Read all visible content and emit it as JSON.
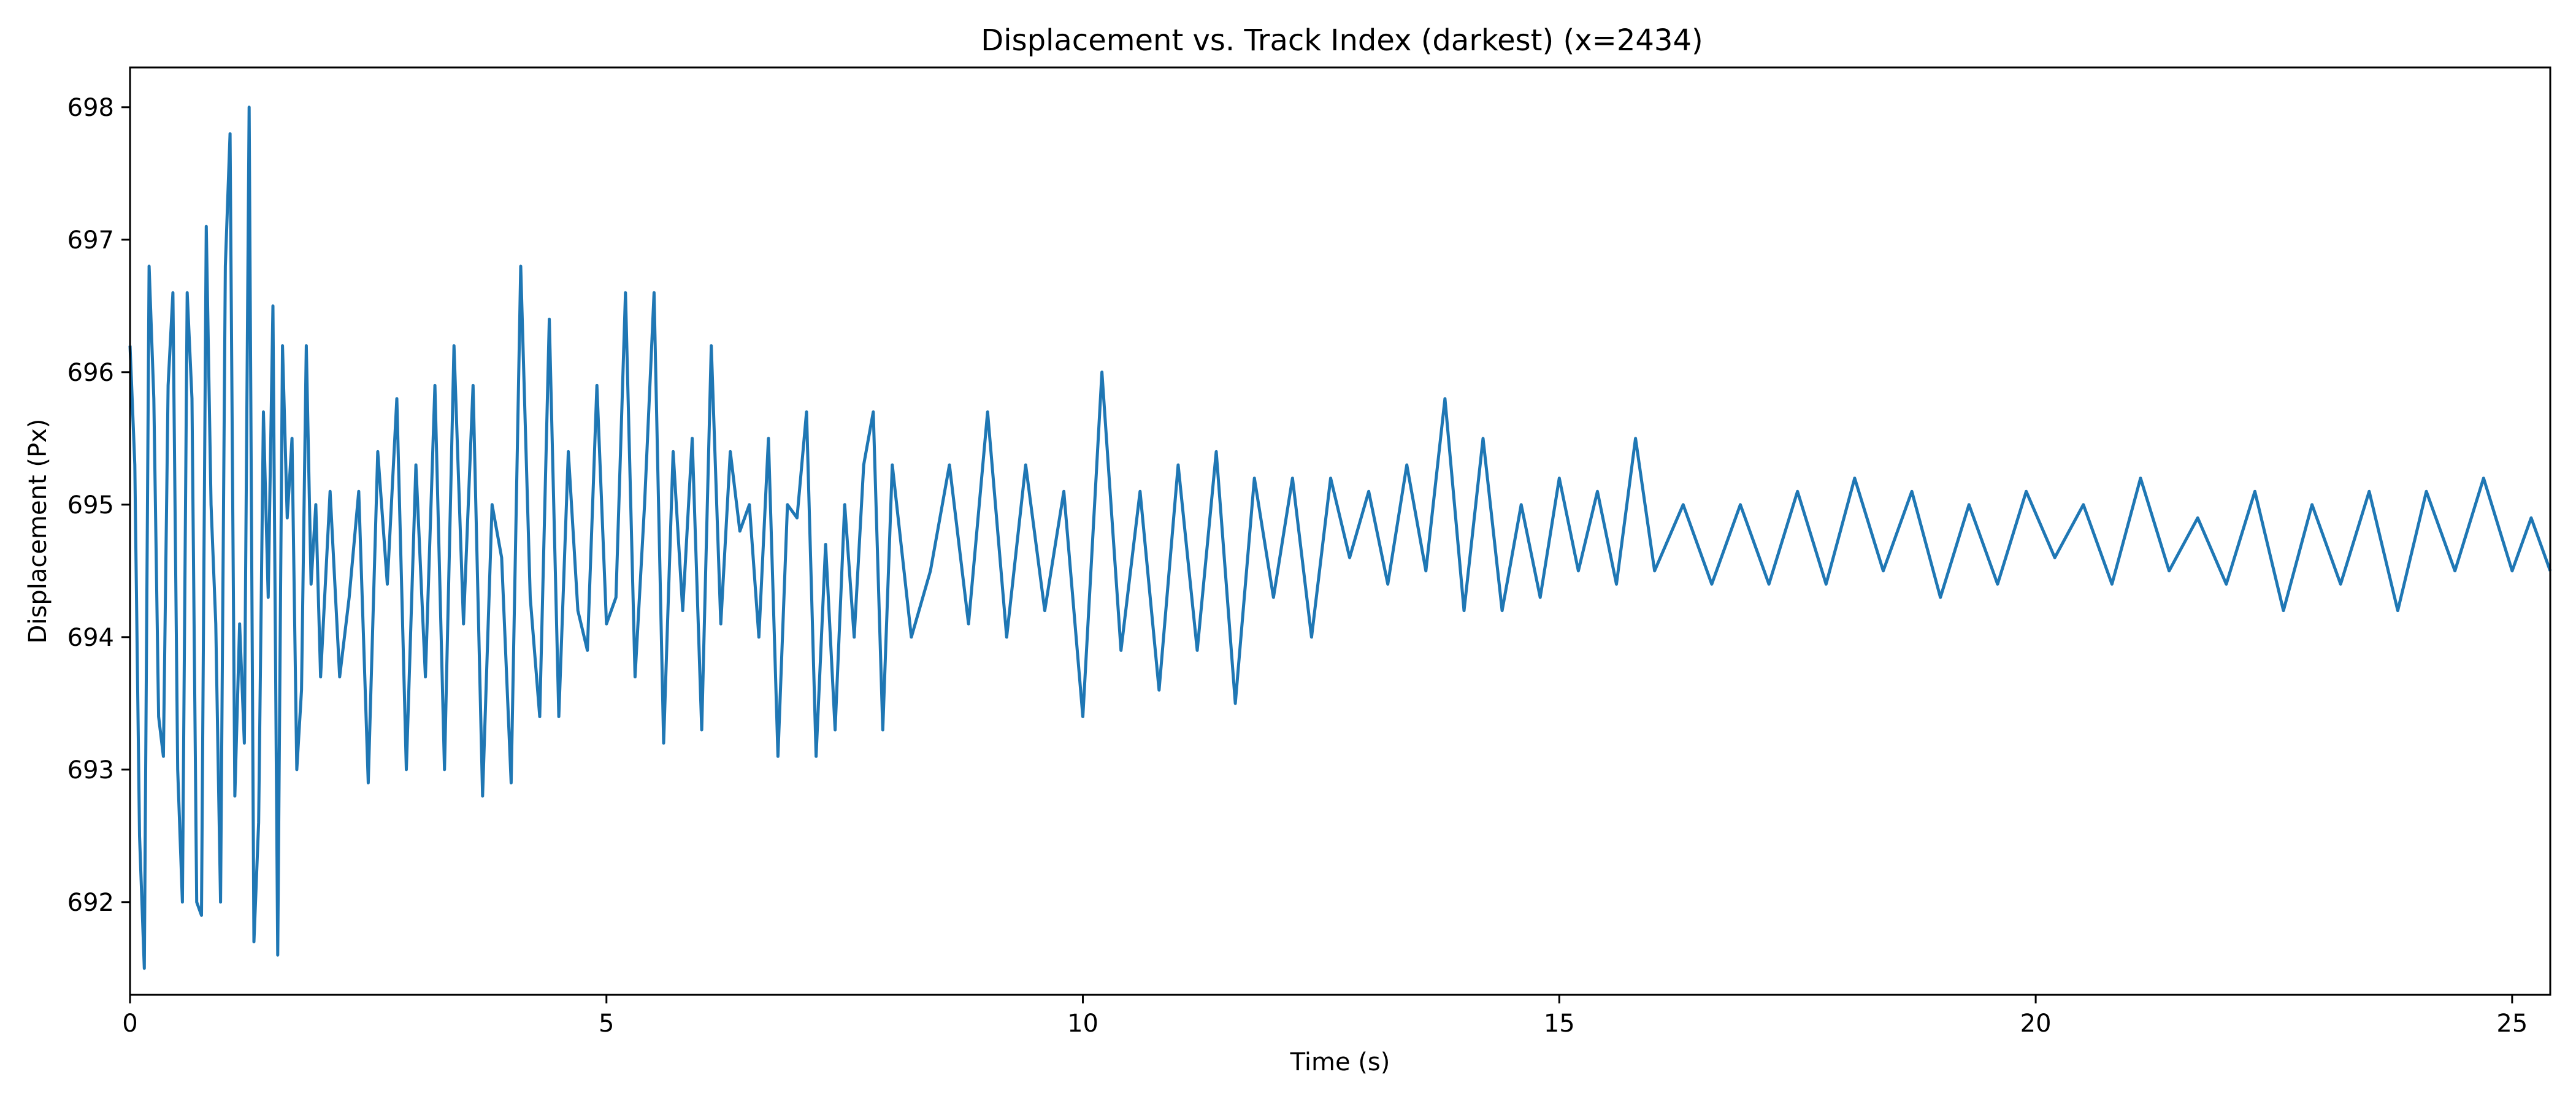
{
  "chart_data": {
    "type": "line",
    "title": "Displacement vs. Track Index (darkest) (x=2434)",
    "xlabel": "Time (s)",
    "ylabel": "Displacement (Px)",
    "xlim": [
      0,
      25.4
    ],
    "ylim": [
      691.3,
      698.3
    ],
    "x_ticks": [
      0,
      5,
      10,
      15,
      20,
      25
    ],
    "y_ticks": [
      692,
      693,
      694,
      695,
      696,
      697,
      698
    ],
    "grid": false,
    "legend": "none",
    "series": [
      {
        "color": "#1f77b4",
        "x": [
          0.0,
          0.05,
          0.1,
          0.15,
          0.2,
          0.25,
          0.3,
          0.35,
          0.4,
          0.45,
          0.5,
          0.55,
          0.6,
          0.65,
          0.7,
          0.75,
          0.8,
          0.85,
          0.9,
          0.95,
          1.0,
          1.05,
          1.1,
          1.15,
          1.2,
          1.25,
          1.3,
          1.35,
          1.4,
          1.45,
          1.5,
          1.55,
          1.6,
          1.65,
          1.7,
          1.75,
          1.8,
          1.85,
          1.9,
          1.95,
          2.0,
          2.1,
          2.2,
          2.3,
          2.4,
          2.5,
          2.6,
          2.7,
          2.8,
          2.9,
          3.0,
          3.1,
          3.2,
          3.3,
          3.4,
          3.5,
          3.6,
          3.7,
          3.8,
          3.9,
          4.0,
          4.1,
          4.2,
          4.3,
          4.4,
          4.5,
          4.6,
          4.7,
          4.8,
          4.9,
          5.0,
          5.1,
          5.2,
          5.3,
          5.4,
          5.5,
          5.6,
          5.7,
          5.8,
          5.9,
          6.0,
          6.1,
          6.2,
          6.3,
          6.4,
          6.5,
          6.6,
          6.7,
          6.8,
          6.9,
          7.0,
          7.1,
          7.2,
          7.3,
          7.4,
          7.5,
          7.6,
          7.7,
          7.8,
          7.9,
          8.0,
          8.2,
          8.4,
          8.6,
          8.8,
          9.0,
          9.2,
          9.4,
          9.6,
          9.8,
          10.0,
          10.2,
          10.4,
          10.6,
          10.8,
          11.0,
          11.2,
          11.4,
          11.6,
          11.8,
          12.0,
          12.2,
          12.4,
          12.6,
          12.8,
          13.0,
          13.2,
          13.4,
          13.6,
          13.8,
          14.0,
          14.2,
          14.4,
          14.6,
          14.8,
          15.0,
          15.2,
          15.4,
          15.6,
          15.8,
          16.0,
          16.3,
          16.6,
          16.9,
          17.2,
          17.5,
          17.8,
          18.1,
          18.4,
          18.7,
          19.0,
          19.3,
          19.6,
          19.9,
          20.2,
          20.5,
          20.8,
          21.1,
          21.4,
          21.7,
          22.0,
          22.3,
          22.6,
          22.9,
          23.2,
          23.5,
          23.8,
          24.1,
          24.4,
          24.7,
          25.0,
          25.2,
          25.4
        ],
        "y": [
          696.2,
          695.3,
          692.5,
          691.5,
          696.8,
          695.8,
          693.4,
          693.1,
          695.9,
          696.6,
          693.0,
          692.0,
          696.6,
          695.8,
          692.0,
          691.9,
          697.1,
          695.0,
          694.1,
          692.0,
          696.8,
          697.8,
          692.8,
          694.1,
          693.2,
          698.0,
          691.7,
          692.6,
          695.7,
          694.3,
          696.5,
          691.6,
          696.2,
          694.9,
          695.5,
          693.0,
          693.6,
          696.2,
          694.4,
          695.0,
          693.7,
          695.1,
          693.7,
          694.3,
          695.1,
          692.9,
          695.4,
          694.4,
          695.8,
          693.0,
          695.3,
          693.7,
          695.9,
          693.0,
          696.2,
          694.1,
          695.9,
          692.8,
          695.0,
          694.6,
          692.9,
          696.8,
          694.3,
          693.4,
          696.4,
          693.4,
          695.4,
          694.2,
          693.9,
          695.9,
          694.1,
          694.3,
          696.6,
          693.7,
          695.0,
          696.6,
          693.2,
          695.4,
          694.2,
          695.5,
          693.3,
          696.2,
          694.1,
          695.4,
          694.8,
          695.0,
          694.0,
          695.5,
          693.1,
          695.0,
          694.9,
          695.7,
          693.1,
          694.7,
          693.3,
          695.0,
          694.0,
          695.3,
          695.7,
          693.3,
          695.3,
          694.0,
          694.5,
          695.3,
          694.1,
          695.7,
          694.0,
          695.3,
          694.2,
          695.1,
          693.4,
          696.0,
          693.9,
          695.1,
          693.6,
          695.3,
          693.9,
          695.4,
          693.5,
          695.2,
          694.3,
          695.2,
          694.0,
          695.2,
          694.6,
          695.1,
          694.4,
          695.3,
          694.5,
          695.8,
          694.2,
          695.5,
          694.2,
          695.0,
          694.3,
          695.2,
          694.5,
          695.1,
          694.4,
          695.5,
          694.5,
          695.0,
          694.4,
          695.0,
          694.4,
          695.1,
          694.4,
          695.2,
          694.5,
          695.1,
          694.3,
          695.0,
          694.4,
          695.1,
          694.6,
          695.0,
          694.4,
          695.2,
          694.5,
          694.9,
          694.4,
          695.1,
          694.2,
          695.0,
          694.4,
          695.1,
          694.2,
          695.1,
          694.5,
          695.2,
          694.5,
          694.9,
          694.5
        ]
      }
    ]
  }
}
